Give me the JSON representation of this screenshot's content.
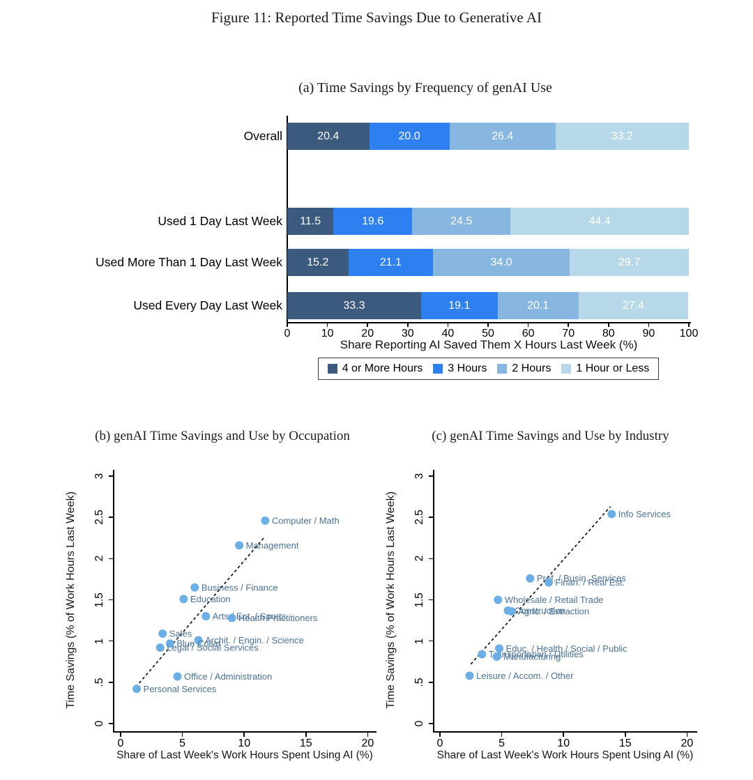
{
  "figure": {
    "title": "Figure 11: Reported Time Savings Due to Generative AI"
  },
  "colors": {
    "bar_navy": "#3b5a7d",
    "bar_blue": "#2e80f0",
    "bar_medium": "#87b7e0",
    "bar_light": "#b7d8e8",
    "scatter_dot": "#6cafe6",
    "scatter_label": "#4a7298",
    "trend_line": "#111111",
    "axis": "#000000"
  },
  "chart_data": [
    {
      "id": "panel_a",
      "type": "bar",
      "orientation": "horizontal-stacked",
      "title": "(a) Time Savings by Frequency of genAI Use",
      "xlabel": "Share Reporting AI Saved Them X Hours Last Week (%)",
      "xlim": [
        0,
        100
      ],
      "xticks": [
        0,
        10,
        20,
        30,
        40,
        50,
        60,
        70,
        80,
        90,
        100
      ],
      "grid": false,
      "legend_position": "bottom",
      "categories": [
        "Overall",
        "Used 1 Day Last Week",
        "Used More Than 1 Day Last Week",
        "Used Every Day Last Week"
      ],
      "series": [
        {
          "name": "4 or More Hours",
          "color": "#3b5a7d",
          "values": [
            20.4,
            11.5,
            15.2,
            33.3
          ]
        },
        {
          "name": "3 Hours",
          "color": "#2e80f0",
          "values": [
            20.0,
            19.6,
            21.1,
            19.1
          ]
        },
        {
          "name": "2 Hours",
          "color": "#87b7e0",
          "values": [
            26.4,
            24.5,
            34.0,
            20.1
          ]
        },
        {
          "name": "1 Hour or Less",
          "color": "#b7d8e8",
          "values": [
            33.2,
            44.4,
            29.7,
            27.4
          ]
        }
      ]
    },
    {
      "id": "panel_b",
      "type": "scatter",
      "title": "(b) genAI Time Savings and Use by Occupation",
      "xlabel": "Share of Last Week's Work Hours Spent Using AI (%)",
      "ylabel": "Time Savings (% of Work Hours Last Week)",
      "xlim": [
        0,
        20
      ],
      "ylim": [
        0,
        3
      ],
      "xticks": [
        0,
        5,
        10,
        15,
        20
      ],
      "yticks": [
        0,
        0.5,
        1,
        1.5,
        2,
        2.5,
        3
      ],
      "ytick_labels": [
        "0",
        ".5",
        "1",
        "1.5",
        "2",
        "2.5",
        "3"
      ],
      "grid": false,
      "points": [
        {
          "label": "Computer / Math",
          "x": 11.7,
          "y": 2.46
        },
        {
          "label": "Management",
          "x": 9.6,
          "y": 2.16
        },
        {
          "label": "Business / Finance",
          "x": 6.0,
          "y": 1.65
        },
        {
          "label": "Education",
          "x": 5.1,
          "y": 1.51
        },
        {
          "label": "Arts / Ent. / Sports",
          "x": 6.9,
          "y": 1.3
        },
        {
          "label": "Health Practitioners",
          "x": 9.0,
          "y": 1.28
        },
        {
          "label": "Sales",
          "x": 3.4,
          "y": 1.09
        },
        {
          "label": "Archit. / Engin. / Science",
          "x": 6.3,
          "y": 1.01
        },
        {
          "label": "Blue Collar",
          "x": 4.0,
          "y": 0.97
        },
        {
          "label": "Legal / Social Services",
          "x": 3.2,
          "y": 0.92
        },
        {
          "label": "Office / Administration",
          "x": 4.6,
          "y": 0.57
        },
        {
          "label": "Personal Services",
          "x": 1.3,
          "y": 0.42
        }
      ],
      "trend_line": {
        "style": "dashed",
        "x1": 1.5,
        "y1": 0.49,
        "x2": 11.7,
        "y2": 2.27
      }
    },
    {
      "id": "panel_c",
      "type": "scatter",
      "title": "(c) genAI Time Savings and Use by Industry",
      "xlabel": "Share of Last Week's Work Hours Spent Using AI (%)",
      "ylabel": "Time Savings (% of Work Hours Last Week)",
      "xlim": [
        0,
        20
      ],
      "ylim": [
        0,
        3
      ],
      "xticks": [
        0,
        5,
        10,
        15,
        20
      ],
      "yticks": [
        0,
        0.5,
        1,
        1.5,
        2,
        2.5,
        3
      ],
      "ytick_labels": [
        "0",
        ".5",
        "1",
        "1.5",
        "2",
        "2.5",
        "3"
      ],
      "grid": false,
      "points": [
        {
          "label": "Info Services",
          "x": 13.9,
          "y": 2.54
        },
        {
          "label": "Prof. / Busin. Services",
          "x": 7.3,
          "y": 1.76
        },
        {
          "label": "Finan. / Real Est.",
          "x": 8.8,
          "y": 1.71
        },
        {
          "label": "Wholesale / Retail Trade",
          "x": 4.7,
          "y": 1.5
        },
        {
          "label": "Construction",
          "x": 5.5,
          "y": 1.37
        },
        {
          "label": "Agric. / Extraction",
          "x": 5.8,
          "y": 1.36
        },
        {
          "label": "Educ. / Health / Social / Public",
          "x": 4.8,
          "y": 0.91
        },
        {
          "label": "Transportation / Utilities",
          "x": 3.4,
          "y": 0.84
        },
        {
          "label": "Manufacturing",
          "x": 4.6,
          "y": 0.81
        },
        {
          "label": "Leisure / Accom. / Other",
          "x": 2.4,
          "y": 0.58
        }
      ],
      "trend_line": {
        "style": "dashed",
        "x1": 2.5,
        "y1": 0.72,
        "x2": 13.8,
        "y2": 2.63
      }
    }
  ]
}
